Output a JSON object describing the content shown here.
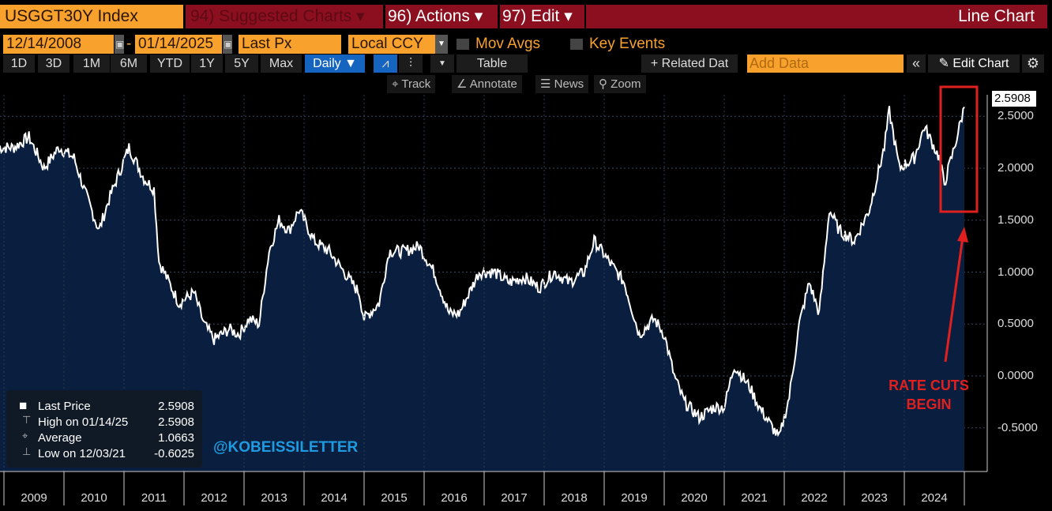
{
  "header": {
    "ticker": "USGGT30Y Index",
    "suggested": "94) Suggested Charts ▾",
    "actions": "96) Actions ▾",
    "edit": "97) Edit ▾",
    "chart_type": "Line Chart"
  },
  "controls": {
    "start_date": "12/14/2008",
    "sep": "-",
    "end_date": "01/14/2025",
    "field": "Last Px",
    "currency": "Local CCY",
    "mov_avgs": "Mov Avgs",
    "key_events": "Key Events"
  },
  "periods": [
    "1D",
    "3D",
    "1M",
    "6M",
    "YTD",
    "1Y",
    "5Y",
    "Max"
  ],
  "frequency": "Daily ▼",
  "table": "Table",
  "related": "+ Related Dat",
  "add_data_placeholder": "Add Data",
  "edit_chart": "✎ Edit Chart",
  "tools": {
    "track": "⌖ Track",
    "annotate": "∠ Annotate",
    "news": "☰ News",
    "zoom": "⚲ Zoom"
  },
  "legend": [
    {
      "label": "Last Price",
      "value": "2.5908"
    },
    {
      "label": "High on 01/14/25",
      "value": "2.5908"
    },
    {
      "label": "Average",
      "value": "1.0663"
    },
    {
      "label": "Low on 12/03/21",
      "value": "-0.6025"
    }
  ],
  "watermark": "@KOBEISSILETTER",
  "annotation": {
    "line1": "RATE CUTS",
    "line2": "BEGIN"
  },
  "last_value_label": "2.5908",
  "colors": {
    "fill": "#0a1f3f",
    "line": "#ffffff",
    "annotation": "#e0201f",
    "watermark": "#1e9be0"
  },
  "chart_data": {
    "type": "area",
    "ylim": [
      -0.75,
      2.85
    ],
    "yticks": [
      "2.5000",
      "2.0000",
      "1.5000",
      "1.0000",
      "0.5000",
      "0.0000",
      "-0.5000"
    ],
    "ytick_values": [
      2.5,
      2.0,
      1.5,
      1.0,
      0.5,
      0.0,
      -0.5
    ],
    "xticks": [
      "2009",
      "2010",
      "2011",
      "2012",
      "2013",
      "2014",
      "2015",
      "2016",
      "2017",
      "2018",
      "2019",
      "2020",
      "2021",
      "2022",
      "2023",
      "2024"
    ],
    "x": [
      "2008-12",
      "2009-03",
      "2009-06",
      "2009-09",
      "2009-12",
      "2010-03",
      "2010-05",
      "2010-08",
      "2010-10",
      "2011-02",
      "2011-05",
      "2011-07",
      "2011-08",
      "2011-10",
      "2011-12",
      "2012-03",
      "2012-05",
      "2012-07",
      "2012-10",
      "2012-12",
      "2013-02",
      "2013-04",
      "2013-06",
      "2013-08",
      "2013-10",
      "2013-12",
      "2014-03",
      "2014-06",
      "2014-09",
      "2014-12",
      "2015-01",
      "2015-04",
      "2015-06",
      "2015-09",
      "2015-12",
      "2016-03",
      "2016-06",
      "2016-08",
      "2016-11",
      "2016-12",
      "2017-03",
      "2017-06",
      "2017-09",
      "2017-12",
      "2018-03",
      "2018-06",
      "2018-09",
      "2018-11",
      "2019-02",
      "2019-05",
      "2019-08",
      "2019-11",
      "2020-01",
      "2020-03",
      "2020-05",
      "2020-08",
      "2020-11",
      "2021-01",
      "2021-03",
      "2021-06",
      "2021-08",
      "2021-12",
      "2022-02",
      "2022-04",
      "2022-06",
      "2022-08",
      "2022-10",
      "2022-12",
      "2023-03",
      "2023-06",
      "2023-09",
      "2023-10",
      "2023-12",
      "2024-03",
      "2024-05",
      "2024-08",
      "2024-09",
      "2024-11",
      "2025-01"
    ],
    "values": [
      2.2,
      2.2,
      2.3,
      2.0,
      2.2,
      2.1,
      1.8,
      1.4,
      1.7,
      2.2,
      1.9,
      1.8,
      1.1,
      0.9,
      0.7,
      0.8,
      0.5,
      0.35,
      0.45,
      0.4,
      0.55,
      0.5,
      1.2,
      1.5,
      1.4,
      1.6,
      1.3,
      1.2,
      1.0,
      0.8,
      0.55,
      0.7,
      1.2,
      1.2,
      1.25,
      1.0,
      0.6,
      0.6,
      0.9,
      1.0,
      1.0,
      0.9,
      0.95,
      0.85,
      1.0,
      0.9,
      1.0,
      1.3,
      1.1,
      0.9,
      0.4,
      0.55,
      0.4,
      0.0,
      -0.25,
      -0.4,
      -0.3,
      -0.3,
      0.1,
      -0.1,
      -0.3,
      -0.6,
      -0.2,
      0.5,
      0.9,
      0.6,
      1.6,
      1.4,
      1.3,
      1.6,
      2.2,
      2.55,
      2.0,
      2.1,
      2.4,
      2.1,
      1.85,
      2.2,
      2.59
    ]
  }
}
